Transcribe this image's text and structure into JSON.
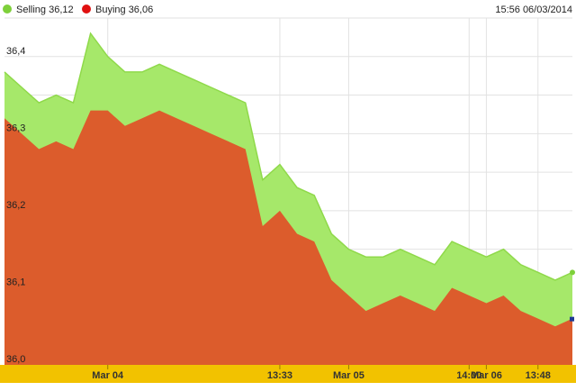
{
  "legend": {
    "selling_label": "Selling 36,12",
    "buying_label": "Buying 36,06",
    "timestamp": "15:56 06/03/2014"
  },
  "colors": {
    "selling": "#a6e86a",
    "selling_line": "#8fd94a",
    "selling_dot": "#7ed03a",
    "buying": "#dc5c2c",
    "buying_dot": "#e01010",
    "axis_band": "#f2c200",
    "grid": "#e2e2e2",
    "end_marker": "#1f3a93"
  },
  "chart_data": {
    "type": "area",
    "title": "",
    "xlabel": "",
    "ylabel": "",
    "ylim": [
      36.0,
      36.45
    ],
    "yticks": [
      "36,0",
      "36,1",
      "36,2",
      "36,3",
      "36,4"
    ],
    "ytick_values": [
      36.0,
      36.1,
      36.2,
      36.3,
      36.4
    ],
    "xticks": [
      {
        "label": "Mar 04",
        "index": 6
      },
      {
        "label": "13:33",
        "index": 16
      },
      {
        "label": "Mar 05",
        "index": 20
      },
      {
        "label": "14:00",
        "index": 27
      },
      {
        "label": "Mar 06",
        "index": 28
      },
      {
        "label": "13:48",
        "index": 31
      }
    ],
    "grid": true,
    "legend_position": "top-left",
    "series": [
      {
        "name": "Selling",
        "values": [
          36.38,
          36.36,
          36.34,
          36.35,
          36.34,
          36.43,
          36.4,
          36.38,
          36.38,
          36.39,
          36.38,
          36.37,
          36.36,
          36.35,
          36.34,
          36.24,
          36.26,
          36.23,
          36.22,
          36.17,
          36.15,
          36.14,
          36.14,
          36.15,
          36.14,
          36.13,
          36.16,
          36.15,
          36.14,
          36.15,
          36.13,
          36.12,
          36.11,
          36.12
        ]
      },
      {
        "name": "Buying",
        "values": [
          36.32,
          36.3,
          36.28,
          36.29,
          36.28,
          36.33,
          36.33,
          36.31,
          36.32,
          36.33,
          36.32,
          36.31,
          36.3,
          36.29,
          36.28,
          36.18,
          36.2,
          36.17,
          36.16,
          36.11,
          36.09,
          36.07,
          36.08,
          36.09,
          36.08,
          36.07,
          36.1,
          36.09,
          36.08,
          36.09,
          36.07,
          36.06,
          36.05,
          36.06
        ]
      }
    ]
  }
}
